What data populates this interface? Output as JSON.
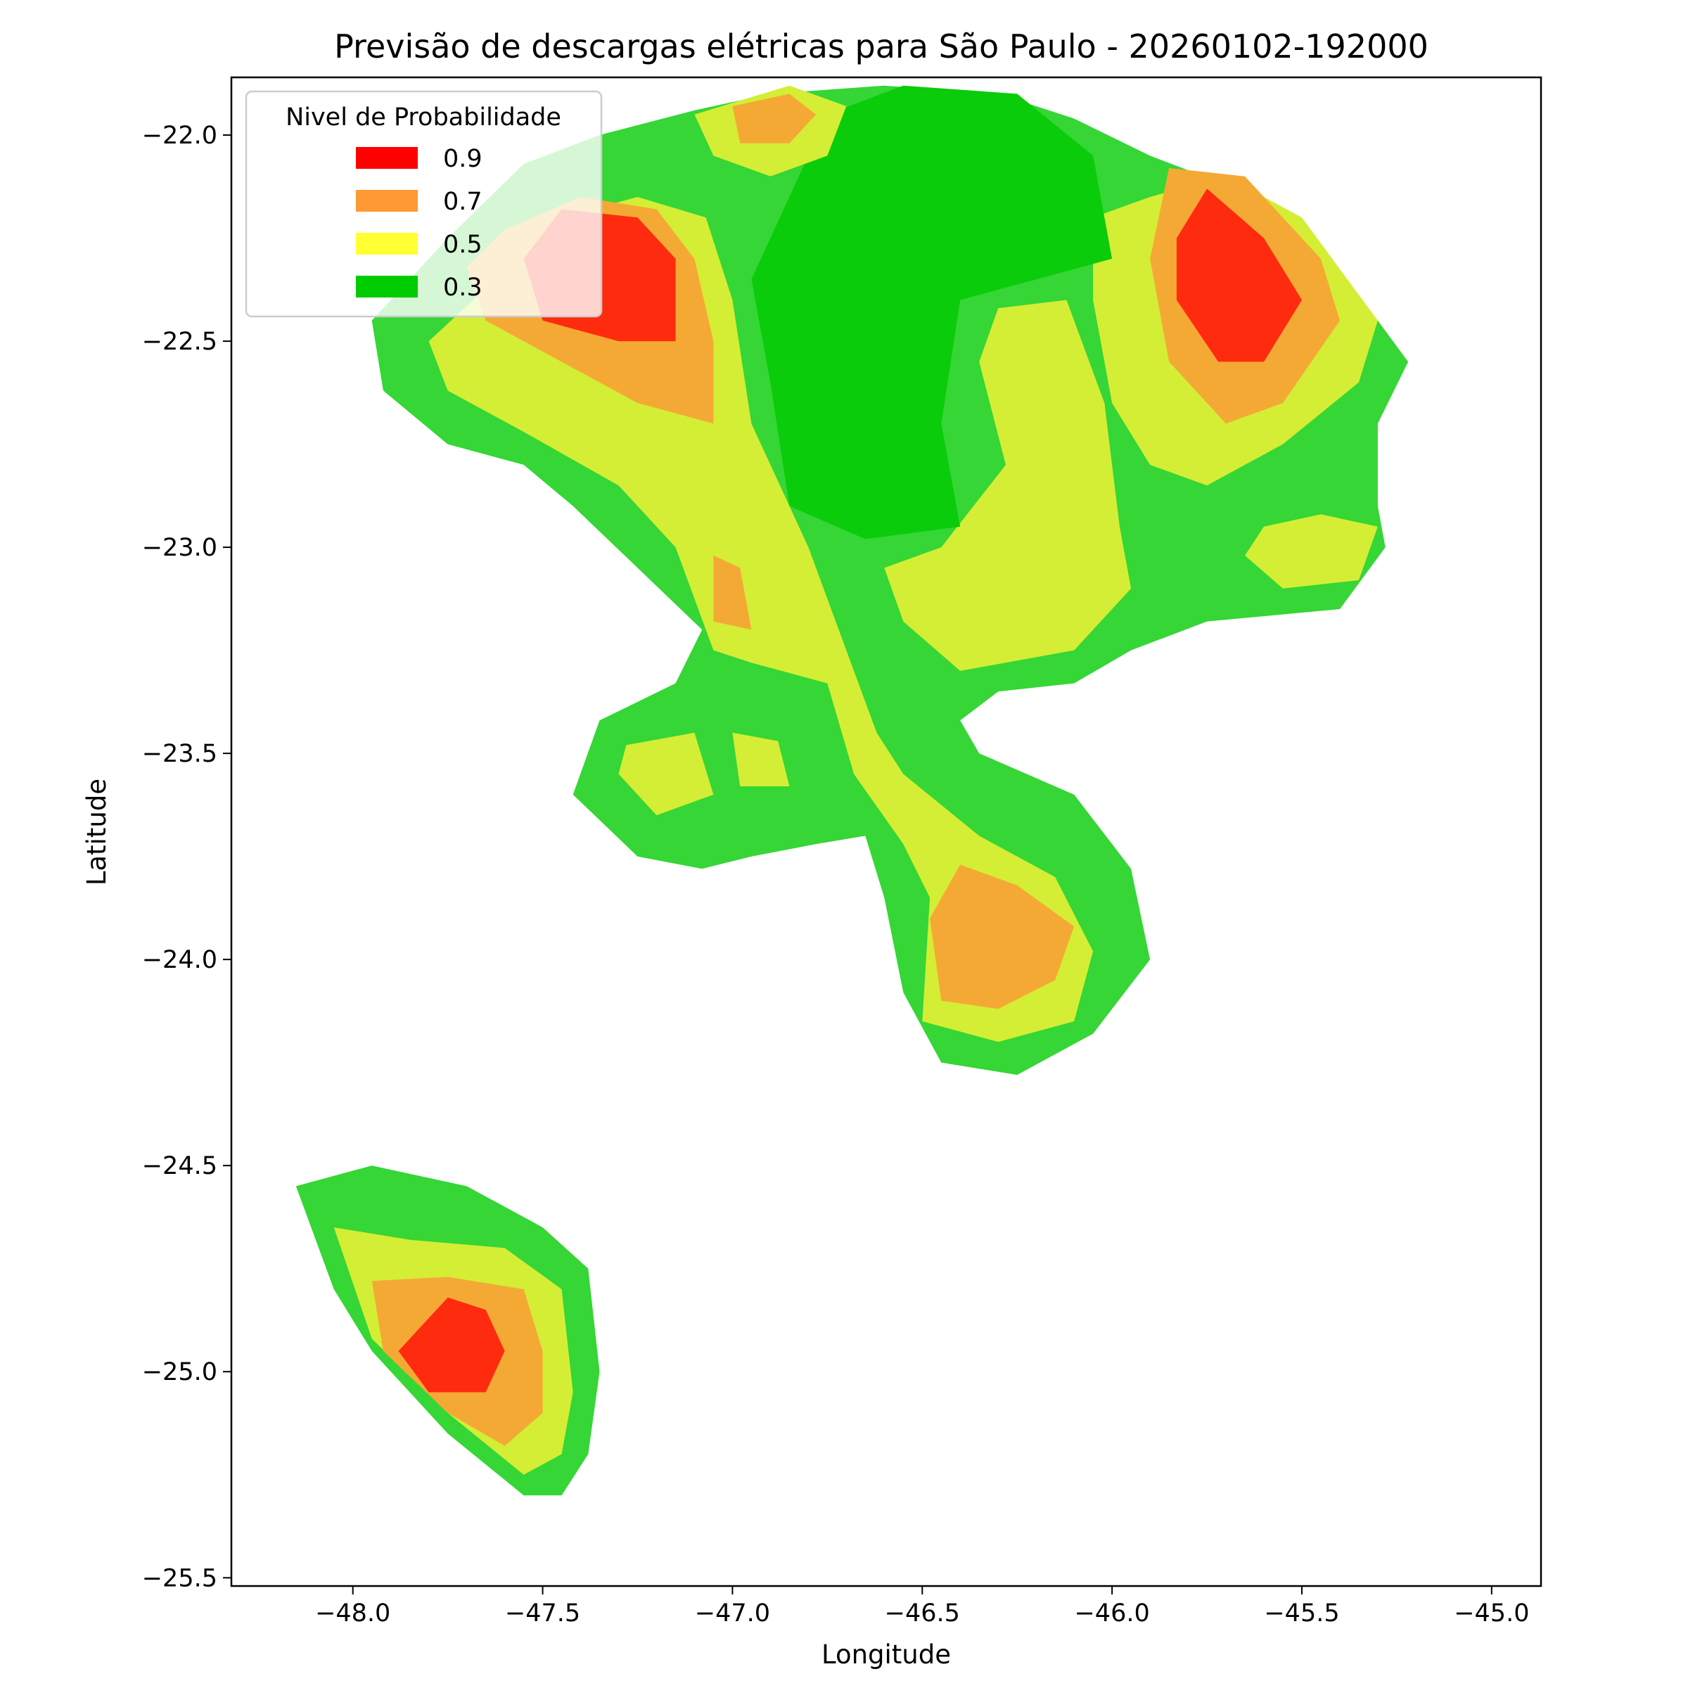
{
  "chart_data": {
    "type": "heatmap",
    "title": "Previsão de descargas elétricas para São Paulo - 20260102-192000",
    "xlabel": "Longitude",
    "ylabel": "Latitude",
    "xlim": [
      -48.32,
      -44.87
    ],
    "ylim": [
      -25.52,
      -21.86
    ],
    "xticks": [
      -48.0,
      -47.5,
      -47.0,
      -46.5,
      -46.0,
      -45.5,
      -45.0
    ],
    "yticks": [
      -22.0,
      -22.5,
      -23.0,
      -23.5,
      -24.0,
      -24.5,
      -25.0,
      -25.5
    ],
    "xtick_labels": [
      "−48.0",
      "−47.5",
      "−47.0",
      "−46.5",
      "−46.0",
      "−45.5",
      "−45.0"
    ],
    "ytick_labels": [
      "−22.0",
      "−22.5",
      "−23.0",
      "−23.5",
      "−24.0",
      "−24.5",
      "−25.0",
      "−25.5"
    ],
    "grid": false,
    "legend": {
      "title": "Nivel de Probabilidade",
      "placement": "top-left",
      "entries": [
        {
          "label": "0.9",
          "color": "#ff0000"
        },
        {
          "label": "0.7",
          "color": "#ff9933"
        },
        {
          "label": "0.5",
          "color": "#ffff33"
        },
        {
          "label": "0.3",
          "color": "#00cc00"
        }
      ]
    },
    "level_colors": {
      "0.3": "#0acc0a",
      "0.4": "#35d635",
      "0.5": "#d4ee35",
      "0.7": "#f5a935",
      "0.9": "#ff2b0e"
    },
    "regions": [
      {
        "name": "Região norte",
        "level": "0.4",
        "polygon": [
          [
            -47.95,
            -22.45
          ],
          [
            -47.75,
            -22.25
          ],
          [
            -47.55,
            -22.07
          ],
          [
            -47.35,
            -22.0
          ],
          [
            -47.1,
            -21.94
          ],
          [
            -46.9,
            -21.9
          ],
          [
            -46.6,
            -21.88
          ],
          [
            -46.3,
            -21.9
          ],
          [
            -46.1,
            -21.96
          ],
          [
            -45.9,
            -22.05
          ],
          [
            -45.7,
            -22.12
          ],
          [
            -45.5,
            -22.28
          ],
          [
            -45.3,
            -22.45
          ],
          [
            -45.22,
            -22.55
          ],
          [
            -45.3,
            -22.7
          ],
          [
            -45.3,
            -22.9
          ],
          [
            -45.28,
            -23.0
          ],
          [
            -45.4,
            -23.15
          ],
          [
            -45.75,
            -23.18
          ],
          [
            -45.95,
            -23.25
          ],
          [
            -46.1,
            -23.33
          ],
          [
            -46.3,
            -23.35
          ],
          [
            -46.4,
            -23.42
          ],
          [
            -46.35,
            -23.5
          ],
          [
            -46.1,
            -23.6
          ],
          [
            -45.95,
            -23.78
          ],
          [
            -45.9,
            -24.0
          ],
          [
            -46.05,
            -24.18
          ],
          [
            -46.25,
            -24.28
          ],
          [
            -46.45,
            -24.25
          ],
          [
            -46.55,
            -24.08
          ],
          [
            -46.6,
            -23.85
          ],
          [
            -46.65,
            -23.7
          ],
          [
            -46.78,
            -23.72
          ],
          [
            -46.95,
            -23.75
          ],
          [
            -47.08,
            -23.78
          ],
          [
            -47.25,
            -23.75
          ],
          [
            -47.42,
            -23.6
          ],
          [
            -47.35,
            -23.42
          ],
          [
            -47.15,
            -23.33
          ],
          [
            -47.08,
            -23.2
          ],
          [
            -47.25,
            -23.05
          ],
          [
            -47.42,
            -22.9
          ],
          [
            -47.55,
            -22.8
          ],
          [
            -47.75,
            -22.75
          ],
          [
            -47.92,
            -22.62
          ]
        ]
      },
      {
        "name": "Faixa central",
        "level": "0.5",
        "polygon": [
          [
            -47.8,
            -22.5
          ],
          [
            -47.6,
            -22.33
          ],
          [
            -47.45,
            -22.2
          ],
          [
            -47.25,
            -22.15
          ],
          [
            -47.07,
            -22.2
          ],
          [
            -47.0,
            -22.4
          ],
          [
            -46.95,
            -22.7
          ],
          [
            -46.8,
            -23.0
          ],
          [
            -46.72,
            -23.2
          ],
          [
            -46.62,
            -23.45
          ],
          [
            -46.55,
            -23.55
          ],
          [
            -46.35,
            -23.7
          ],
          [
            -46.15,
            -23.8
          ],
          [
            -46.05,
            -23.98
          ],
          [
            -46.1,
            -24.15
          ],
          [
            -46.3,
            -24.2
          ],
          [
            -46.5,
            -24.15
          ],
          [
            -46.48,
            -23.85
          ],
          [
            -46.55,
            -23.72
          ],
          [
            -46.68,
            -23.55
          ],
          [
            -46.75,
            -23.33
          ],
          [
            -46.95,
            -23.28
          ],
          [
            -47.05,
            -23.25
          ],
          [
            -47.15,
            -23.0
          ],
          [
            -47.3,
            -22.85
          ],
          [
            -47.55,
            -22.72
          ],
          [
            -47.75,
            -22.62
          ]
        ]
      },
      {
        "name": "Faixa nordeste",
        "level": "0.5",
        "polygon": [
          [
            -46.05,
            -22.2
          ],
          [
            -45.9,
            -22.15
          ],
          [
            -45.7,
            -22.1
          ],
          [
            -45.5,
            -22.2
          ],
          [
            -45.3,
            -22.45
          ],
          [
            -45.35,
            -22.6
          ],
          [
            -45.55,
            -22.75
          ],
          [
            -45.75,
            -22.85
          ],
          [
            -45.9,
            -22.8
          ],
          [
            -46.0,
            -22.65
          ],
          [
            -46.05,
            -22.4
          ]
        ]
      },
      {
        "name": "Braço leste",
        "level": "0.5",
        "polygon": [
          [
            -46.3,
            -22.42
          ],
          [
            -46.12,
            -22.4
          ],
          [
            -46.02,
            -22.65
          ],
          [
            -45.98,
            -22.95
          ],
          [
            -45.95,
            -23.1
          ],
          [
            -46.1,
            -23.25
          ],
          [
            -46.4,
            -23.3
          ],
          [
            -46.55,
            -23.18
          ],
          [
            -46.6,
            -23.05
          ],
          [
            -46.45,
            -23.0
          ],
          [
            -46.28,
            -22.8
          ],
          [
            -46.35,
            -22.55
          ]
        ]
      },
      {
        "name": "Ilha leste",
        "level": "0.5",
        "polygon": [
          [
            -45.6,
            -22.95
          ],
          [
            -45.45,
            -22.92
          ],
          [
            -45.3,
            -22.95
          ],
          [
            -45.35,
            -23.08
          ],
          [
            -45.55,
            -23.1
          ],
          [
            -45.65,
            -23.02
          ]
        ]
      },
      {
        "name": "Ilhas oeste",
        "level": "0.5",
        "polygon": [
          [
            -47.28,
            -23.48
          ],
          [
            -47.1,
            -23.45
          ],
          [
            -47.05,
            -23.6
          ],
          [
            -47.2,
            -23.65
          ],
          [
            -47.3,
            -23.55
          ]
        ]
      },
      {
        "name": "Ilha central",
        "level": "0.5",
        "polygon": [
          [
            -47.0,
            -23.45
          ],
          [
            -46.88,
            -23.47
          ],
          [
            -46.85,
            -23.58
          ],
          [
            -46.98,
            -23.58
          ]
        ]
      },
      {
        "name": "Núcleo central",
        "level": "0.3",
        "polygon": [
          [
            -46.55,
            -21.88
          ],
          [
            -46.25,
            -21.9
          ],
          [
            -46.05,
            -22.05
          ],
          [
            -46.0,
            -22.3
          ],
          [
            -46.2,
            -22.35
          ],
          [
            -46.4,
            -22.4
          ],
          [
            -46.45,
            -22.7
          ],
          [
            -46.4,
            -22.95
          ],
          [
            -46.65,
            -22.98
          ],
          [
            -46.85,
            -22.9
          ],
          [
            -46.9,
            -22.6
          ],
          [
            -46.95,
            -22.35
          ],
          [
            -46.85,
            -22.15
          ],
          [
            -46.75,
            -21.95
          ]
        ]
      },
      {
        "name": "Núcleo oeste",
        "level": "0.7",
        "polygon": [
          [
            -47.6,
            -22.23
          ],
          [
            -47.4,
            -22.15
          ],
          [
            -47.2,
            -22.18
          ],
          [
            -47.1,
            -22.3
          ],
          [
            -47.05,
            -22.5
          ],
          [
            -47.05,
            -22.7
          ],
          [
            -47.25,
            -22.65
          ],
          [
            -47.45,
            -22.55
          ],
          [
            -47.65,
            -22.45
          ],
          [
            -47.7,
            -22.32
          ]
        ]
      },
      {
        "name": "Núcleo oeste forte",
        "level": "0.9",
        "polygon": [
          [
            -47.45,
            -22.18
          ],
          [
            -47.25,
            -22.2
          ],
          [
            -47.15,
            -22.3
          ],
          [
            -47.15,
            -22.5
          ],
          [
            -47.3,
            -22.5
          ],
          [
            -47.5,
            -22.45
          ],
          [
            -47.55,
            -22.3
          ]
        ]
      },
      {
        "name": "Núcleo nordeste",
        "level": "0.7",
        "polygon": [
          [
            -45.85,
            -22.08
          ],
          [
            -45.65,
            -22.1
          ],
          [
            -45.45,
            -22.3
          ],
          [
            -45.4,
            -22.45
          ],
          [
            -45.55,
            -22.65
          ],
          [
            -45.7,
            -22.7
          ],
          [
            -45.85,
            -22.55
          ],
          [
            -45.9,
            -22.3
          ]
        ]
      },
      {
        "name": "Núcleo nordeste forte",
        "level": "0.9",
        "polygon": [
          [
            -45.75,
            -22.13
          ],
          [
            -45.6,
            -22.25
          ],
          [
            -45.5,
            -22.4
          ],
          [
            -45.6,
            -22.55
          ],
          [
            -45.72,
            -22.55
          ],
          [
            -45.83,
            -22.4
          ],
          [
            -45.83,
            -22.25
          ]
        ]
      },
      {
        "name": "Núcleo sul",
        "level": "0.7",
        "polygon": [
          [
            -46.4,
            -23.77
          ],
          [
            -46.25,
            -23.82
          ],
          [
            -46.1,
            -23.92
          ],
          [
            -46.15,
            -24.05
          ],
          [
            -46.3,
            -24.12
          ],
          [
            -46.45,
            -24.1
          ],
          [
            -46.48,
            -23.9
          ]
        ]
      },
      {
        "name": "Mancha central",
        "level": "0.7",
        "polygon": [
          [
            -47.05,
            -23.02
          ],
          [
            -46.98,
            -23.05
          ],
          [
            -46.95,
            -23.2
          ],
          [
            -47.05,
            -23.18
          ]
        ]
      },
      {
        "name": "Topo norte",
        "level": "0.5",
        "polygon": [
          [
            -47.1,
            -21.95
          ],
          [
            -46.85,
            -21.88
          ],
          [
            -46.7,
            -21.93
          ],
          [
            -46.75,
            -22.05
          ],
          [
            -46.9,
            -22.1
          ],
          [
            -47.05,
            -22.05
          ]
        ]
      },
      {
        "name": "Topo norte laranja",
        "level": "0.7",
        "polygon": [
          [
            -47.0,
            -21.93
          ],
          [
            -46.85,
            -21.9
          ],
          [
            -46.78,
            -21.95
          ],
          [
            -46.85,
            -22.02
          ],
          [
            -46.98,
            -22.02
          ]
        ]
      },
      {
        "name": "Região sudoeste",
        "level": "0.4",
        "polygon": [
          [
            -48.15,
            -24.55
          ],
          [
            -47.95,
            -24.5
          ],
          [
            -47.7,
            -24.55
          ],
          [
            -47.5,
            -24.65
          ],
          [
            -47.38,
            -24.75
          ],
          [
            -47.35,
            -25.0
          ],
          [
            -47.38,
            -25.2
          ],
          [
            -47.45,
            -25.3
          ],
          [
            -47.55,
            -25.3
          ],
          [
            -47.75,
            -25.15
          ],
          [
            -47.95,
            -24.95
          ],
          [
            -48.05,
            -24.8
          ]
        ]
      },
      {
        "name": "Sudoeste amarelo",
        "level": "0.5",
        "polygon": [
          [
            -48.05,
            -24.65
          ],
          [
            -47.85,
            -24.68
          ],
          [
            -47.6,
            -24.7
          ],
          [
            -47.45,
            -24.8
          ],
          [
            -47.42,
            -25.05
          ],
          [
            -47.45,
            -25.2
          ],
          [
            -47.55,
            -25.25
          ],
          [
            -47.75,
            -25.1
          ],
          [
            -47.95,
            -24.92
          ]
        ]
      },
      {
        "name": "Sudoeste laranja",
        "level": "0.7",
        "polygon": [
          [
            -47.95,
            -24.78
          ],
          [
            -47.75,
            -24.77
          ],
          [
            -47.55,
            -24.8
          ],
          [
            -47.5,
            -24.95
          ],
          [
            -47.5,
            -25.1
          ],
          [
            -47.6,
            -25.18
          ],
          [
            -47.75,
            -25.1
          ],
          [
            -47.92,
            -24.95
          ]
        ]
      },
      {
        "name": "Sudoeste forte",
        "level": "0.9",
        "polygon": [
          [
            -47.75,
            -24.82
          ],
          [
            -47.65,
            -24.85
          ],
          [
            -47.6,
            -24.95
          ],
          [
            -47.65,
            -25.05
          ],
          [
            -47.8,
            -25.05
          ],
          [
            -47.88,
            -24.95
          ]
        ]
      }
    ]
  }
}
